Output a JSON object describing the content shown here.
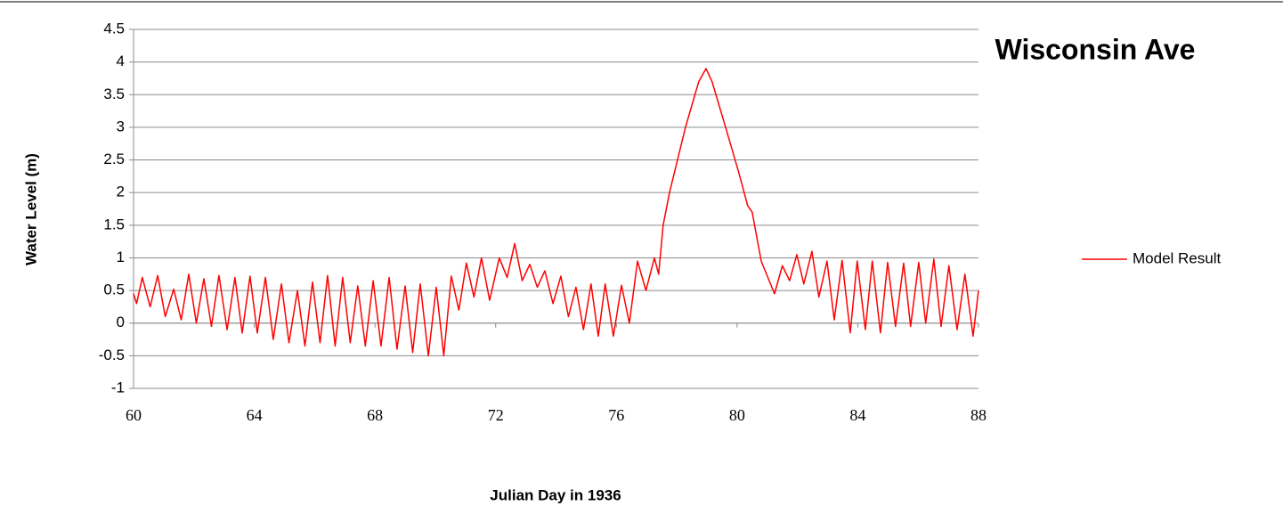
{
  "chart_data": {
    "type": "line",
    "title": "Wisconsin Ave",
    "x_label": "Julian Day in 1936",
    "y_label": "Water Level (m)",
    "xlim": [
      60,
      88
    ],
    "xticks": [
      60,
      64,
      68,
      72,
      76,
      80,
      84,
      88
    ],
    "ylim": [
      -1,
      4.5
    ],
    "yticks": [
      -1,
      -0.5,
      0,
      0.5,
      1,
      1.5,
      2,
      2.5,
      3,
      3.5,
      4,
      4.5
    ],
    "grid": true,
    "legend": "right",
    "x": [
      60.0,
      60.1,
      60.29,
      60.55,
      60.8,
      61.05,
      61.33,
      61.58,
      61.83,
      62.08,
      62.33,
      62.58,
      62.83,
      63.1,
      63.36,
      63.6,
      63.86,
      64.1,
      64.37,
      64.63,
      64.9,
      65.15,
      65.43,
      65.68,
      65.93,
      66.18,
      66.43,
      66.68,
      66.93,
      67.18,
      67.43,
      67.68,
      67.94,
      68.2,
      68.47,
      68.73,
      69.0,
      69.25,
      69.5,
      69.77,
      70.03,
      70.28,
      70.53,
      70.78,
      71.03,
      71.28,
      71.53,
      71.8,
      72.12,
      72.38,
      72.63,
      72.88,
      73.13,
      73.38,
      73.63,
      73.9,
      74.16,
      74.41,
      74.66,
      74.91,
      75.16,
      75.4,
      75.63,
      75.9,
      76.17,
      76.43,
      76.7,
      76.98,
      77.26,
      77.4,
      77.55,
      77.76,
      78.29,
      78.73,
      78.97,
      79.17,
      79.62,
      80.06,
      80.35,
      80.5,
      80.8,
      81.24,
      81.5,
      81.74,
      81.98,
      82.21,
      82.48,
      82.71,
      82.98,
      83.22,
      83.48,
      83.75,
      83.98,
      84.25,
      84.48,
      84.75,
      84.99,
      85.25,
      85.52,
      85.75,
      86.02,
      86.25,
      86.52,
      86.76,
      87.02,
      87.29,
      87.55,
      87.82,
      88.0
    ],
    "series": [
      {
        "name": "Model Result",
        "color": "#ff0000",
        "values": [
          0.45,
          0.3,
          0.7,
          0.25,
          0.73,
          0.1,
          0.52,
          0.05,
          0.75,
          0.0,
          0.68,
          -0.05,
          0.73,
          -0.1,
          0.7,
          -0.15,
          0.72,
          -0.15,
          0.7,
          -0.25,
          0.6,
          -0.3,
          0.5,
          -0.35,
          0.63,
          -0.3,
          0.73,
          -0.35,
          0.7,
          -0.3,
          0.57,
          -0.35,
          0.65,
          -0.35,
          0.7,
          -0.4,
          0.57,
          -0.45,
          0.6,
          -0.5,
          0.55,
          -0.5,
          0.72,
          0.2,
          0.92,
          0.4,
          1.0,
          0.35,
          1.0,
          0.7,
          1.22,
          0.65,
          0.9,
          0.55,
          0.8,
          0.3,
          0.72,
          0.1,
          0.55,
          -0.1,
          0.6,
          -0.2,
          0.6,
          -0.2,
          0.58,
          0.0,
          0.95,
          0.5,
          1.0,
          0.75,
          1.5,
          2.0,
          3.0,
          3.7,
          3.9,
          3.7,
          3.0,
          2.3,
          1.8,
          1.7,
          0.95,
          0.45,
          0.88,
          0.65,
          1.05,
          0.6,
          1.1,
          0.4,
          0.95,
          0.05,
          0.96,
          -0.15,
          0.95,
          -0.1,
          0.95,
          -0.15,
          0.93,
          -0.05,
          0.92,
          -0.05,
          0.93,
          0.0,
          0.98,
          -0.05,
          0.88,
          -0.1,
          0.75,
          -0.2,
          0.5
        ]
      }
    ]
  }
}
